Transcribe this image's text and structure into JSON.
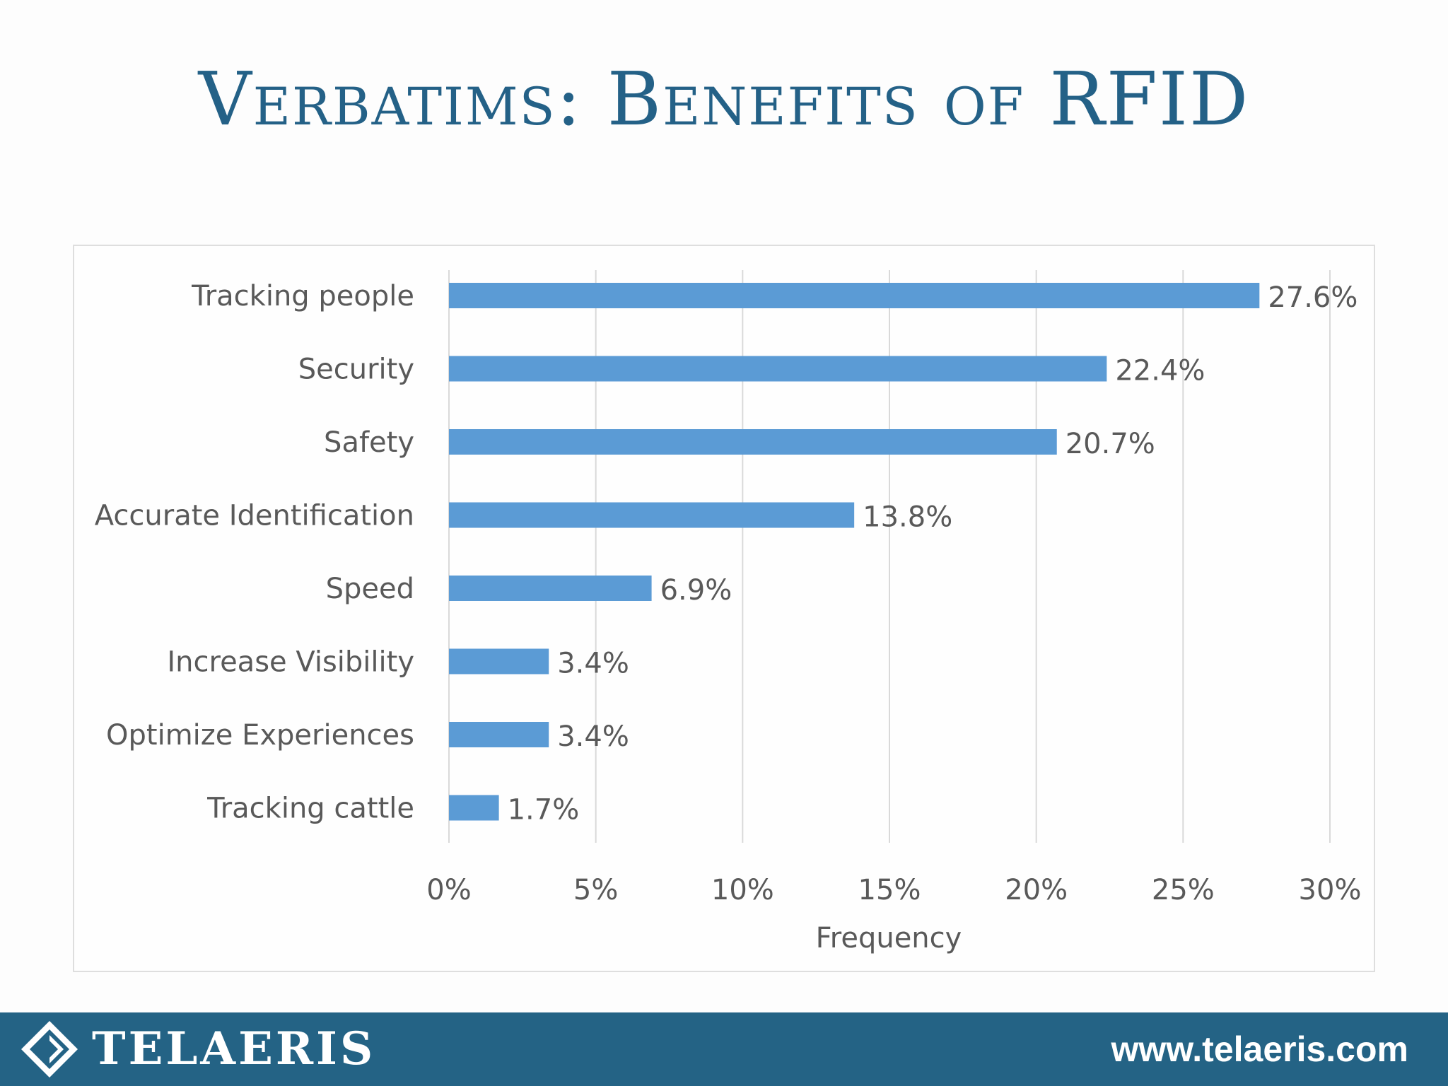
{
  "slide": {
    "title": "Verbatims: Benefits of RFID"
  },
  "footer": {
    "brand": "TELAERIS",
    "url": "www.telaeris.com"
  },
  "colors": {
    "title": "#246187",
    "bar": "#5b9bd5",
    "footer": "#246385",
    "text": "#595959",
    "grid": "#d9d9d9"
  },
  "icons": {
    "logo": "telaeris-diamond-logo-icon"
  },
  "chart_data": {
    "type": "bar",
    "orientation": "horizontal",
    "categories": [
      "Tracking people",
      "Security",
      "Safety",
      "Accurate Identification",
      "Speed",
      "Increase Visibility",
      "Optimize Experiences",
      "Tracking cattle"
    ],
    "values": [
      27.6,
      22.4,
      20.7,
      13.8,
      6.9,
      3.4,
      3.4,
      1.7
    ],
    "data_labels": [
      "27.6%",
      "22.4%",
      "20.7%",
      "13.8%",
      "6.9%",
      "3.4%",
      "3.4%",
      "1.7%"
    ],
    "xlabel": "Frequency",
    "xlim": [
      0,
      30
    ],
    "xticks": [
      0,
      5,
      10,
      15,
      20,
      25,
      30
    ],
    "xtick_labels": [
      "0%",
      "5%",
      "10%",
      "15%",
      "20%",
      "25%",
      "30%"
    ],
    "grid": "vertical",
    "legend": "none"
  }
}
